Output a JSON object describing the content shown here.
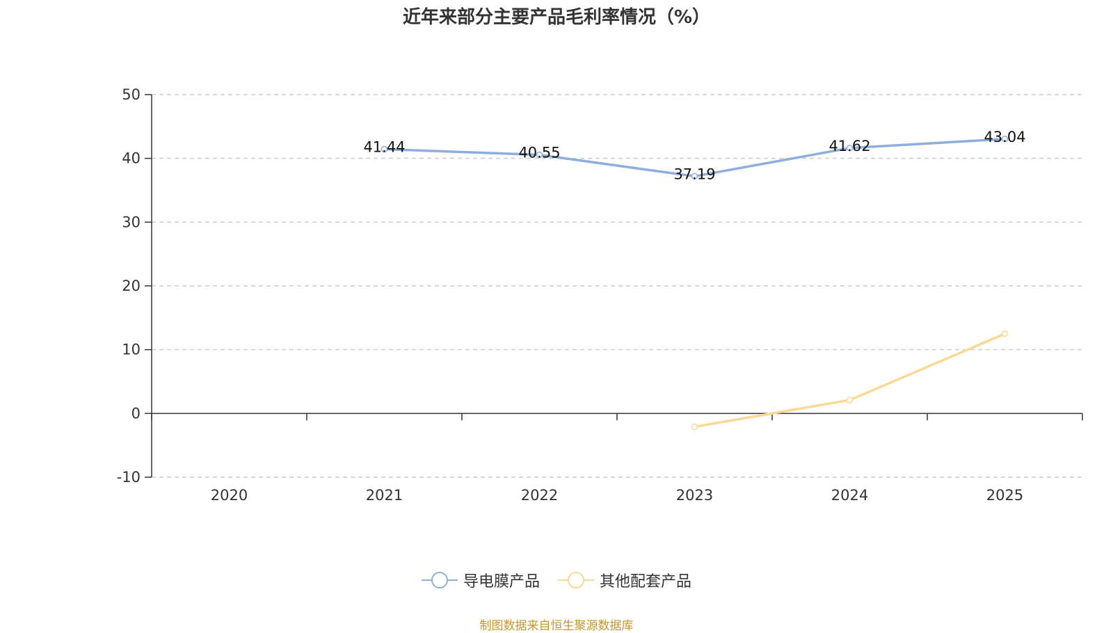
{
  "title": "近年来部分主要产品毛利率情况（%）",
  "source": "制图数据来自恒生聚源数据库",
  "chart_data": {
    "type": "line",
    "title": "近年来部分主要产品毛利率情况（%）",
    "categories": [
      "2020",
      "2021",
      "2022",
      "2023",
      "2024",
      "2025"
    ],
    "ylim": [
      -10,
      50
    ],
    "yticks": [
      -10,
      0,
      10,
      20,
      30,
      40,
      50
    ],
    "grid": true,
    "legend_position": "bottom",
    "series": [
      {
        "name": "导电膜产品",
        "color": "#8eaedb",
        "values": [
          null,
          41.44,
          40.55,
          37.19,
          41.62,
          43.04
        ],
        "show_labels": true
      },
      {
        "name": "其他配套产品",
        "color": "#fbd894",
        "values": [
          null,
          null,
          null,
          -2.1,
          2.1,
          12.5
        ],
        "show_labels": false
      }
    ]
  }
}
